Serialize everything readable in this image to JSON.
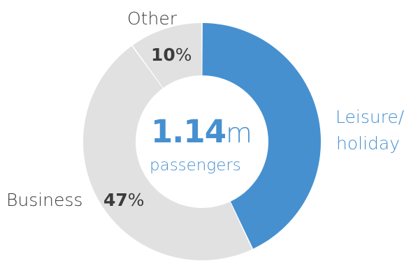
{
  "chart_data": {
    "type": "pie",
    "style": "donut",
    "slices": [
      {
        "label": "Leisure/ holiday",
        "label_lines": [
          "Leisure/",
          "holiday"
        ],
        "value": 43,
        "color": "#4690d0"
      },
      {
        "label": "Business",
        "value": 47,
        "color": "#e1e1e1"
      },
      {
        "label": "Other",
        "value": 10,
        "color": "#e1e1e1"
      }
    ],
    "center": {
      "value": "1.14",
      "unit": "m",
      "caption": "passengers"
    },
    "percent_sign": "%"
  },
  "colors": {
    "accent": "#4690d0",
    "muted_slice": "#e1e1e1",
    "text_dark": "#3b3b3b"
  }
}
